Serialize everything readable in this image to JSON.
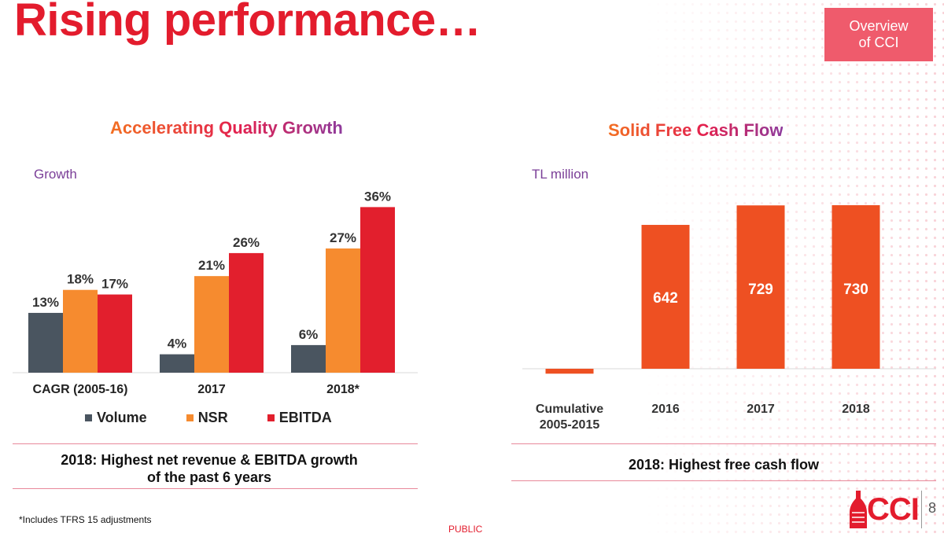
{
  "header": {
    "title": "Rising performance…",
    "badge_line1": "Overview",
    "badge_line2": "of CCI"
  },
  "left_panel": {
    "title": "Accelerating Quality Growth",
    "axis_note": "Growth",
    "summary_line1": "2018: Highest net revenue & EBITDA growth",
    "summary_line2": "of the past 6 years"
  },
  "right_panel": {
    "title": "Solid Free Cash Flow",
    "axis_note": "TL million",
    "summary": "2018: Highest free cash flow"
  },
  "footer": {
    "footnote": "*Includes TFRS 15 adjustments",
    "public_label": "PUBLIC",
    "logo_text": "CCI",
    "page_number": "8"
  },
  "colors": {
    "title_red": "#e31c2d",
    "volume": "#4a5560",
    "nsr": "#f68b2f",
    "ebitda": "#e21f2d",
    "fcf": "#ee5022",
    "badge": "#ef5b6c"
  },
  "chart_data": [
    {
      "type": "bar",
      "title": "Accelerating Quality Growth",
      "ylabel": "Growth",
      "unit": "%",
      "categories": [
        "CAGR (2005-16)",
        "2017",
        "2018*"
      ],
      "series": [
        {
          "name": "Volume",
          "values": [
            13,
            4,
            6
          ],
          "labels": [
            "13%",
            "4%",
            "6%"
          ]
        },
        {
          "name": "NSR",
          "values": [
            18,
            21,
            27
          ],
          "labels": [
            "18%",
            "21%",
            "27%"
          ]
        },
        {
          "name": "EBITDA",
          "values": [
            17,
            26,
            36
          ],
          "labels": [
            "17%",
            "26%",
            "36%"
          ]
        }
      ],
      "ylim": [
        0,
        40
      ],
      "grid": false,
      "legend": "bottom"
    },
    {
      "type": "bar",
      "title": "Solid Free Cash Flow",
      "ylabel": "TL million",
      "categories": [
        "Cumulative 2005-2015",
        "2016",
        "2017",
        "2018"
      ],
      "category_lines": [
        [
          "Cumulative",
          "2005-2015"
        ],
        [
          "2016"
        ],
        [
          "2017"
        ],
        [
          "2018"
        ]
      ],
      "values": [
        -22,
        642,
        729,
        730
      ],
      "labels": [
        "-",
        "642",
        "729",
        "730"
      ],
      "ylim": [
        -50,
        800
      ],
      "grid": false,
      "legend": "none"
    }
  ]
}
